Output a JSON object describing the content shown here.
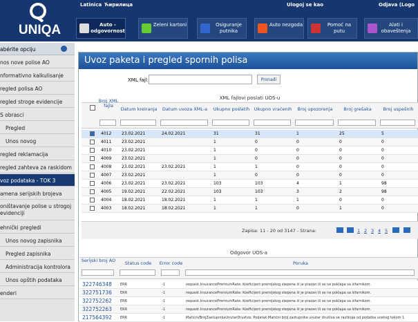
{
  "header": {
    "logo": "UNIQA",
    "language_links": [
      "Latinica",
      "Ћирилица"
    ],
    "login_label": "Ulogoj se kao",
    "logout_label": "Odjava (Logo",
    "nav": [
      "Auto - odgovornost",
      "Zeleni kartoni",
      "Osiguranje putnika",
      "Auto nezgoda",
      "Pomoć na putu",
      "Alati i obaveštenja"
    ]
  },
  "sidebar": {
    "title": "abérite opciju",
    "items": [
      {
        "label": "nos nove polise AO"
      },
      {
        "label": "nformativno kalkulisanje"
      },
      {
        "label": "regled polisa AO"
      },
      {
        "label": "regled stroge evidencije"
      },
      {
        "label": "S obrasci"
      },
      {
        "label": "Pregled",
        "indent": true
      },
      {
        "label": "Unos novog",
        "indent": true
      },
      {
        "label": "regled reklamacija"
      },
      {
        "label": "regled zahteva za raskidom"
      },
      {
        "label": "voz podataka - TOK 3",
        "selected": true
      },
      {
        "label": "amena serijskih brojeva"
      },
      {
        "label": "oništavanje polise u strogoj evidenciji"
      },
      {
        "label": "ehnički pregledi"
      },
      {
        "label": "Unos novog zapisnika",
        "indent": true
      },
      {
        "label": "Pregled zapisnika",
        "indent": true
      },
      {
        "label": "Administracija kontrolora",
        "indent": true
      },
      {
        "label": "Unos opštih podataka",
        "indent": true
      },
      {
        "label": "enderi"
      }
    ]
  },
  "panel": {
    "title": "Uvoz paketa i pregled spornih polisa",
    "file_label": "XML fajl:",
    "search_button": "Pronađi"
  },
  "xml_grid": {
    "title": "XML fajlovi poslati UOS-u",
    "columns": [
      "Broj XML fajla",
      "Datum kreiranja",
      "Datum uvoza XML-a",
      "Ukupno poslatih",
      "Ukupno vraćenih",
      "Broj upozorenja",
      "Broj grešaka",
      "Broj uspešnih"
    ],
    "rows": [
      [
        "4012",
        "23.02.2021",
        "24.02.2021",
        "31",
        "31",
        "1",
        "25",
        "5"
      ],
      [
        "4011",
        "23.02.2021",
        "",
        "1",
        "0",
        "0",
        "0",
        "0"
      ],
      [
        "4010",
        "23.02.2021",
        "",
        "1",
        "0",
        "0",
        "0",
        "0"
      ],
      [
        "4009",
        "23.02.2021",
        "",
        "1",
        "0",
        "0",
        "0",
        "0"
      ],
      [
        "4008",
        "23.02.2021",
        "23.02.2021",
        "1",
        "1",
        "0",
        "0",
        "0"
      ],
      [
        "4007",
        "23.02.2021",
        "",
        "1",
        "0",
        "0",
        "0",
        "0"
      ],
      [
        "4006",
        "23.02.2021",
        "23.02.2021",
        "103",
        "103",
        "4",
        "1",
        "98"
      ],
      [
        "4005",
        "19.02.2021",
        "22.02.2021",
        "103",
        "103",
        "3",
        "2",
        "98"
      ],
      [
        "4004",
        "18.02.2021",
        "18.02.2021",
        "1",
        "1",
        "1",
        "0",
        "0"
      ],
      [
        "4003",
        "18.02.2021",
        "18.02.2021",
        "1",
        "1",
        "0",
        "1",
        "0"
      ]
    ],
    "pager_text": "Zapisa: 11 - 20 od 3147 - Strana:",
    "pages": [
      "1",
      "2",
      "3",
      "4",
      "5"
    ]
  },
  "response_grid": {
    "title": "Odgovor UOS-a",
    "columns": [
      "Serijski broj AO",
      "Status code",
      "Error code",
      "Poruka"
    ],
    "rows": [
      [
        "322746348",
        "ERR",
        "-1",
        "request.InsurancePremiumRate: Koeficijent premijskog stepena iii je prazan ili se ne poklapa sa šifarnikom."
      ],
      [
        "322751736",
        "ERR",
        "-1",
        "request.InsurancePremiumRate: Koeficijent premijskog stepena iii je prazan ili se ne poklapa sa šifarnikom."
      ],
      [
        "322752262",
        "ERR",
        "-1",
        "request.InsurancePremiumRate: Koeficijent premijskog stepena iii je prazan ili se ne poklapa sa šifarnikom."
      ],
      [
        "322752263",
        "ERR",
        "-1",
        "request.InsurancePremiumRate: Koeficijent premijskog stepena iii je prazan ili se ne poklapa sa šifarnikom."
      ],
      [
        "217564392",
        "ERR",
        "-1",
        "Maticni/BrojZastupnikaUnutarDrustva: Podatak Matični broj zastupnika unutar društva se razlikuje od podatka unetog tokom 1"
      ]
    ]
  }
}
